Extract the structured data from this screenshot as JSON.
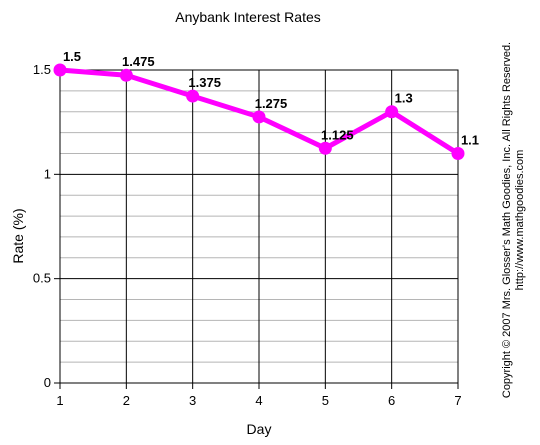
{
  "chart_data": {
    "type": "line",
    "title": "Anybank Interest Rates",
    "xlabel": "Day",
    "ylabel": "Rate (%)",
    "x": [
      1,
      2,
      3,
      4,
      5,
      6,
      7
    ],
    "x_tick_labels": [
      "1",
      "2",
      "3",
      "4",
      "5",
      "6",
      "7"
    ],
    "y_ticks": [
      0,
      0.5,
      1,
      1.5
    ],
    "y_tick_labels": [
      "0",
      "0.5",
      "1",
      "1.5"
    ],
    "xlim": [
      1,
      7
    ],
    "ylim": [
      0,
      1.5
    ],
    "grid": true,
    "minor_grid_step": 0.1,
    "series": [
      {
        "values": [
          1.5,
          1.475,
          1.375,
          1.275,
          1.125,
          1.3,
          1.1
        ],
        "data_labels": [
          "1.5",
          "1.475",
          "1.375",
          "1.275",
          "1.125",
          "1.3",
          "1.1"
        ],
        "color": "#ff00ff"
      }
    ]
  },
  "copyright": {
    "line1": "Copyright © 2007 Mrs. Glosser's Math Goodies, Inc. All Rights Reserved.",
    "line2": "http://www.mathgoodies.com"
  }
}
